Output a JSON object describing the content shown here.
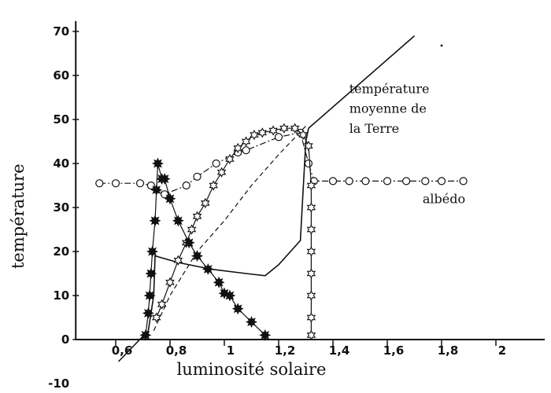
{
  "chart_data": {
    "type": "line",
    "xlabel": "luminosité solaire",
    "ylabel": "température",
    "xlim": [
      0.45,
      2.18
    ],
    "ylim": [
      -10,
      72
    ],
    "x_ticks": [
      {
        "value": 0.6,
        "label": "0,6"
      },
      {
        "value": 0.8,
        "label": "0,8"
      },
      {
        "value": 1.0,
        "label": "1"
      },
      {
        "value": 1.2,
        "label": "1,2"
      },
      {
        "value": 1.4,
        "label": "1,4"
      },
      {
        "value": 1.6,
        "label": "1,6"
      },
      {
        "value": 1.8,
        "label": "1,8"
      },
      {
        "value": 2.0,
        "label": "2"
      }
    ],
    "y_ticks": [
      {
        "value": -10,
        "label": "-10"
      },
      {
        "value": 0,
        "label": "0"
      },
      {
        "value": 10,
        "label": "10"
      },
      {
        "value": 20,
        "label": "20"
      },
      {
        "value": 30,
        "label": "30"
      },
      {
        "value": 40,
        "label": "40"
      },
      {
        "value": 50,
        "label": "50"
      },
      {
        "value": 60,
        "label": "60"
      },
      {
        "value": 70,
        "label": "70"
      }
    ],
    "annotations": [
      {
        "text": "température",
        "x": 1.46,
        "y": 56
      },
      {
        "text": "moyenne de",
        "x": 1.46,
        "y": 51.5
      },
      {
        "text": "la Terre",
        "x": 1.46,
        "y": 47
      },
      {
        "text": "albédo",
        "x": 1.73,
        "y": 31
      }
    ],
    "series": [
      {
        "style": "solid",
        "marker": "none",
        "points": [
          [
            0.61,
            -5
          ],
          [
            0.72,
            2
          ],
          [
            0.74,
            10
          ],
          [
            0.745,
            19
          ],
          [
            0.83,
            17.5
          ],
          [
            0.95,
            16
          ],
          [
            1.08,
            15
          ],
          [
            1.15,
            14.5
          ],
          [
            1.2,
            17
          ],
          [
            1.28,
            22.5
          ],
          [
            1.3,
            45
          ],
          [
            1.31,
            48
          ],
          [
            1.7,
            69
          ]
        ]
      },
      {
        "style": "dash-dot",
        "marker": "open-circle",
        "points": [
          [
            0.54,
            35.5
          ],
          [
            0.6,
            35.5
          ],
          [
            0.69,
            35.5
          ],
          [
            0.73,
            35
          ],
          [
            0.78,
            33
          ],
          [
            0.86,
            35
          ],
          [
            0.9,
            37
          ],
          [
            0.97,
            40
          ],
          [
            1.05,
            42.5
          ],
          [
            1.08,
            43
          ],
          [
            1.2,
            46
          ],
          [
            1.28,
            47
          ],
          [
            1.31,
            40
          ],
          [
            1.33,
            36
          ],
          [
            1.4,
            36
          ],
          [
            1.46,
            36
          ],
          [
            1.52,
            36
          ],
          [
            1.6,
            36
          ],
          [
            1.67,
            36
          ],
          [
            1.74,
            36
          ],
          [
            1.8,
            36
          ],
          [
            1.88,
            36
          ]
        ]
      },
      {
        "style": "dashed",
        "marker": "none",
        "points": [
          [
            0.74,
            2
          ],
          [
            0.8,
            10
          ],
          [
            0.9,
            20
          ],
          [
            1.0,
            27
          ],
          [
            1.1,
            35
          ],
          [
            1.2,
            42
          ],
          [
            1.3,
            48.5
          ]
        ]
      },
      {
        "style": "solid",
        "marker": "open-star",
        "points": [
          [
            0.75,
            5
          ],
          [
            0.77,
            8
          ],
          [
            0.8,
            13
          ],
          [
            0.83,
            18
          ],
          [
            0.86,
            22
          ],
          [
            0.88,
            25
          ],
          [
            0.9,
            28
          ],
          [
            0.93,
            31
          ],
          [
            0.96,
            35
          ],
          [
            0.99,
            38
          ],
          [
            1.02,
            41
          ],
          [
            1.05,
            43.5
          ],
          [
            1.08,
            45
          ],
          [
            1.11,
            46.5
          ],
          [
            1.14,
            47
          ],
          [
            1.18,
            47.5
          ],
          [
            1.22,
            48
          ],
          [
            1.26,
            48
          ],
          [
            1.29,
            46.5
          ],
          [
            1.31,
            44
          ],
          [
            1.32,
            35
          ],
          [
            1.32,
            30
          ],
          [
            1.32,
            25
          ],
          [
            1.32,
            20
          ],
          [
            1.32,
            15
          ],
          [
            1.32,
            10
          ],
          [
            1.32,
            5
          ],
          [
            1.32,
            1
          ]
        ]
      },
      {
        "style": "solid",
        "marker": "filled-star",
        "points": [
          [
            0.71,
            1
          ],
          [
            0.72,
            6
          ],
          [
            0.725,
            10
          ],
          [
            0.73,
            15
          ],
          [
            0.735,
            20
          ],
          [
            0.745,
            27
          ],
          [
            0.75,
            34
          ],
          [
            0.755,
            40
          ],
          [
            0.77,
            36.5
          ],
          [
            0.78,
            36.5
          ],
          [
            0.8,
            32
          ],
          [
            0.83,
            27
          ],
          [
            0.87,
            22
          ],
          [
            0.9,
            19
          ],
          [
            0.94,
            16
          ],
          [
            0.98,
            13
          ],
          [
            1.0,
            10.5
          ],
          [
            1.02,
            10
          ],
          [
            1.05,
            7
          ],
          [
            1.1,
            4
          ],
          [
            1.15,
            1
          ]
        ]
      }
    ]
  }
}
